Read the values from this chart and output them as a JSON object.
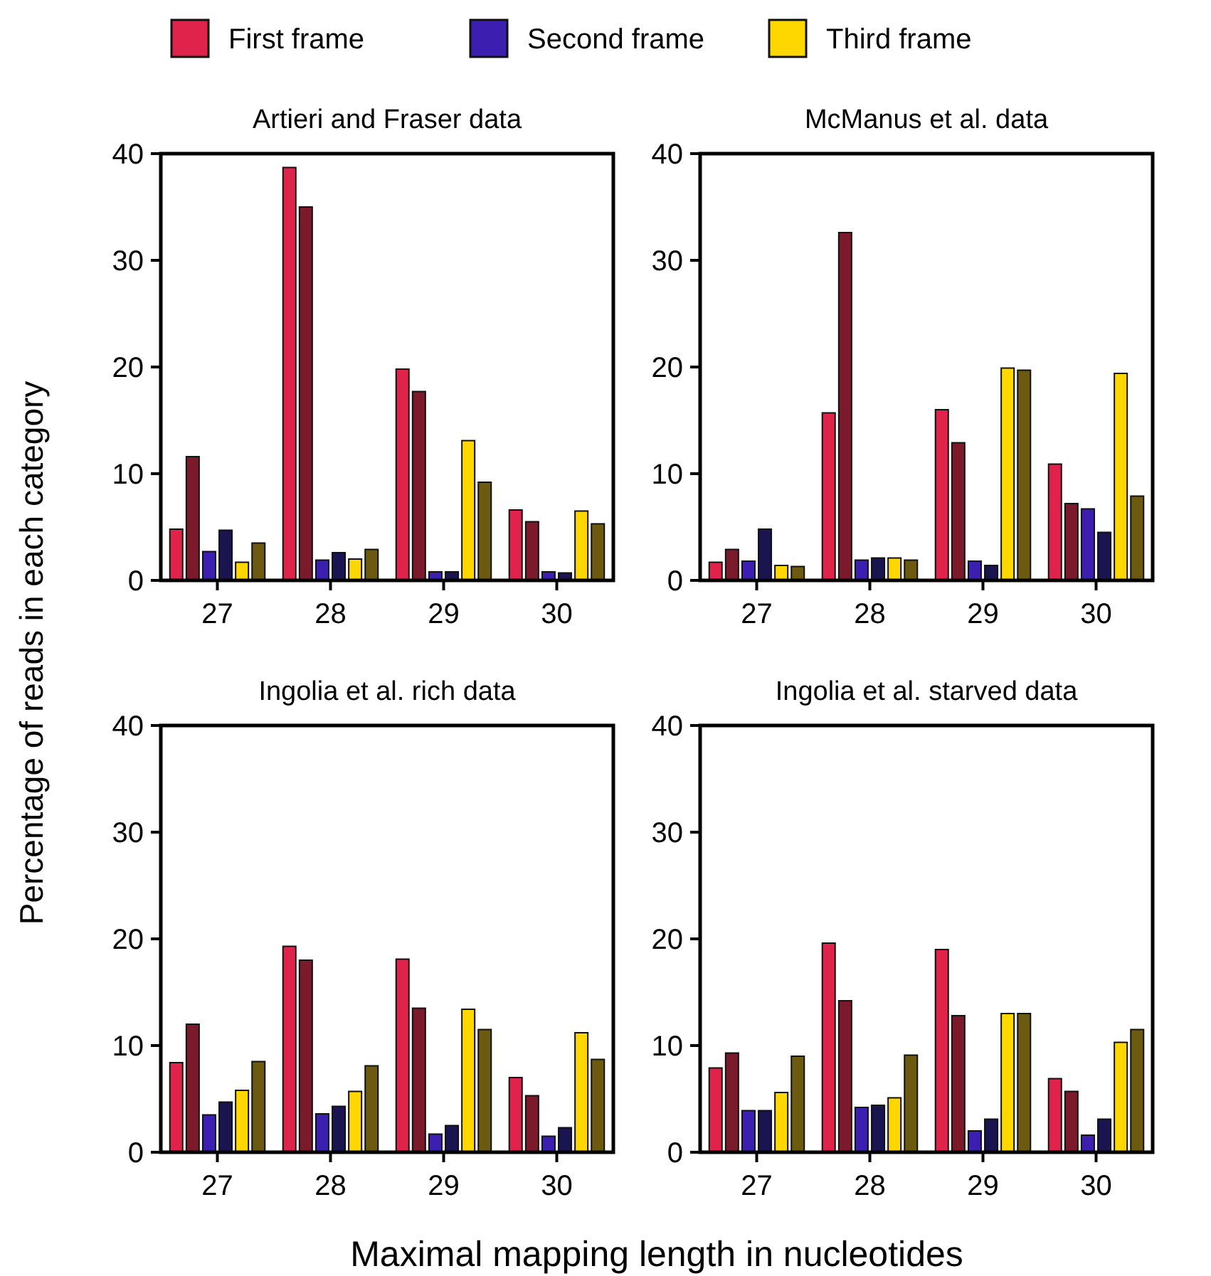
{
  "chart_data": [
    {
      "type": "bar",
      "title": "Artieri and Fraser data",
      "ylabel": "Percentage of reads in each category",
      "categories": [
        "27",
        "28",
        "29",
        "30"
      ],
      "ylim": [
        0,
        40
      ],
      "yticks": [
        0,
        10,
        20,
        30,
        40
      ],
      "legend": "top",
      "series": [
        {
          "name": "First frame",
          "color": "#e0234a",
          "values": [
            4.8,
            38.7,
            19.8,
            6.6
          ]
        },
        {
          "color": "#7a1a2a",
          "values": [
            11.6,
            35,
            17.7,
            5.5
          ]
        },
        {
          "name": "Second frame",
          "color": "#3c1fb0",
          "values": [
            2.7,
            1.9,
            0.8,
            0.8
          ]
        },
        {
          "color": "#1a1450",
          "values": [
            4.7,
            2.6,
            0.8,
            0.7
          ]
        },
        {
          "name": "Third frame",
          "color": "#ffd700",
          "values": [
            1.7,
            2.0,
            13.1,
            6.5
          ]
        },
        {
          "color": "#6b5a10",
          "values": [
            3.5,
            2.9,
            9.2,
            5.3
          ]
        }
      ]
    },
    {
      "type": "bar",
      "title": "McManus et al. data",
      "categories": [
        "27",
        "28",
        "29",
        "30"
      ],
      "ylim": [
        0,
        40
      ],
      "yticks": [
        0,
        10,
        20,
        30,
        40
      ],
      "series": [
        {
          "color": "#e0234a",
          "values": [
            1.7,
            15.7,
            16.0,
            10.9
          ]
        },
        {
          "color": "#7a1a2a",
          "values": [
            2.9,
            32.6,
            12.9,
            7.2
          ]
        },
        {
          "color": "#3c1fb0",
          "values": [
            1.8,
            1.9,
            1.8,
            6.7
          ]
        },
        {
          "color": "#1a1450",
          "values": [
            4.8,
            2.1,
            1.4,
            4.5
          ]
        },
        {
          "color": "#ffd700",
          "values": [
            1.4,
            2.1,
            19.9,
            19.4
          ]
        },
        {
          "color": "#6b5a10",
          "values": [
            1.3,
            1.9,
            19.7,
            7.9
          ]
        }
      ]
    },
    {
      "type": "bar",
      "title": "Ingolia et al. rich data",
      "xlabel": "Maximal mapping length in nucleotides",
      "categories": [
        "27",
        "28",
        "29",
        "30"
      ],
      "ylim": [
        0,
        40
      ],
      "yticks": [
        0,
        10,
        20,
        30,
        40
      ],
      "series": [
        {
          "color": "#e0234a",
          "values": [
            8.4,
            19.3,
            18.1,
            7.0
          ]
        },
        {
          "color": "#7a1a2a",
          "values": [
            12,
            18,
            13.5,
            5.3
          ]
        },
        {
          "color": "#3c1fb0",
          "values": [
            3.5,
            3.6,
            1.7,
            1.5
          ]
        },
        {
          "color": "#1a1450",
          "values": [
            4.7,
            4.3,
            2.5,
            2.3
          ]
        },
        {
          "color": "#ffd700",
          "values": [
            5.8,
            5.7,
            13.4,
            11.2
          ]
        },
        {
          "color": "#6b5a10",
          "values": [
            8.5,
            8.1,
            11.5,
            8.7
          ]
        }
      ]
    },
    {
      "type": "bar",
      "title": "Ingolia et al. starved data",
      "categories": [
        "27",
        "28",
        "29",
        "30"
      ],
      "ylim": [
        0,
        40
      ],
      "yticks": [
        0,
        10,
        20,
        30,
        40
      ],
      "series": [
        {
          "color": "#e0234a",
          "values": [
            7.9,
            19.6,
            19.0,
            6.9
          ]
        },
        {
          "color": "#7a1a2a",
          "values": [
            9.3,
            14.2,
            12.8,
            5.7
          ]
        },
        {
          "color": "#3c1fb0",
          "values": [
            3.9,
            4.2,
            2.0,
            1.6
          ]
        },
        {
          "color": "#1a1450",
          "values": [
            3.9,
            4.4,
            3.1,
            3.1
          ]
        },
        {
          "color": "#ffd700",
          "values": [
            5.6,
            5.1,
            13.0,
            10.3
          ]
        },
        {
          "color": "#6b5a10",
          "values": [
            9.0,
            9.1,
            13.0,
            11.5
          ]
        }
      ]
    }
  ]
}
